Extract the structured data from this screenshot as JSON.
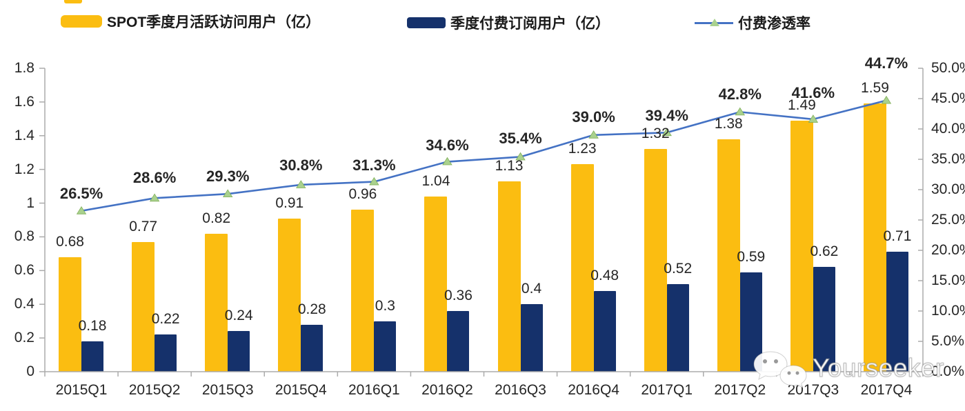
{
  "legend": {
    "items": [
      {
        "label": "SPOT季度月活跃访问用户（亿）",
        "swatch": "bar-yellow"
      },
      {
        "label": "季度付费订阅用户（亿）",
        "swatch": "bar-navy"
      },
      {
        "label": "付费渗透率",
        "swatch": "line-with-triangle-marker"
      }
    ]
  },
  "colors": {
    "mau_bar": "#FBBD11",
    "paid_bar": "#15316B",
    "line": "#4472C4",
    "marker_fill": "#A9D18E",
    "marker_edge": "#82B05A",
    "axis": "#ABABAB",
    "text": "#262626"
  },
  "chart_data": {
    "type": "bar",
    "subtype": "bar+line combo, dual axis",
    "categories": [
      "2015Q1",
      "2015Q2",
      "2015Q3",
      "2015Q4",
      "2016Q1",
      "2016Q2",
      "2016Q3",
      "2016Q4",
      "2017Q1",
      "2017Q2",
      "2017Q3",
      "2017Q4"
    ],
    "series": [
      {
        "name": "SPOT季度月活跃访问用户（亿）",
        "type": "bar",
        "axis": "left",
        "color_key": "mau_bar",
        "values": [
          0.68,
          0.77,
          0.82,
          0.91,
          0.96,
          1.04,
          1.13,
          1.23,
          1.32,
          1.38,
          1.49,
          1.59
        ],
        "labels": [
          "0.68",
          "0.77",
          "0.82",
          "0.91",
          "0.96",
          "1.04",
          "1.13",
          "1.23",
          "1.32",
          "1.38",
          "1.49",
          "1.59"
        ]
      },
      {
        "name": "季度付费订阅用户（亿）",
        "type": "bar",
        "axis": "left",
        "color_key": "paid_bar",
        "values": [
          0.18,
          0.22,
          0.24,
          0.28,
          0.3,
          0.36,
          0.4,
          0.48,
          0.52,
          0.59,
          0.62,
          0.71
        ],
        "labels": [
          "0.18",
          "0.22",
          "0.24",
          "0.28",
          "0.3",
          "0.36",
          "0.4",
          "0.48",
          "0.52",
          "0.59",
          "0.62",
          "0.71"
        ]
      },
      {
        "name": "付费渗透率",
        "type": "line",
        "axis": "right",
        "color_key": "line",
        "values": [
          26.5,
          28.6,
          29.3,
          30.8,
          31.3,
          34.6,
          35.4,
          39.0,
          39.4,
          42.8,
          41.6,
          44.7
        ],
        "labels": [
          "26.5%",
          "28.6%",
          "29.3%",
          "30.8%",
          "31.3%",
          "34.6%",
          "35.4%",
          "39.0%",
          "39.4%",
          "42.8%",
          "41.6%",
          "44.7%"
        ]
      }
    ],
    "left_axis": {
      "min": 0,
      "max": 1.8,
      "step": 0.2,
      "tick_labels": [
        "1.8",
        "1.6",
        "1.4",
        "1.2",
        "1",
        "0.8",
        "0.6",
        "0.4",
        "0.2",
        "0"
      ]
    },
    "right_axis": {
      "min": 0,
      "max": 50,
      "step": 5,
      "unit": "%",
      "tick_labels": [
        "50.0%",
        "45.0%",
        "40.0%",
        "35.0%",
        "30.0%",
        "25.0%",
        "20.0%",
        "15.0%",
        "10.0%",
        "5.0%",
        "0.0%"
      ]
    },
    "grid": false,
    "legend_position": "top"
  },
  "watermark": {
    "text": "Yourseeker",
    "icon": "wechat-icon"
  }
}
